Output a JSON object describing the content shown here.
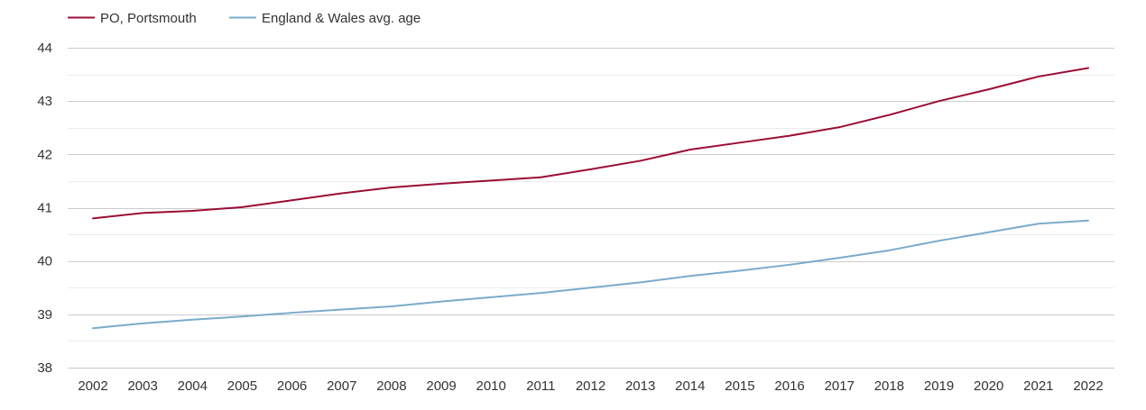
{
  "chart_data": {
    "type": "line",
    "x": [
      "2002",
      "2003",
      "2004",
      "2005",
      "2006",
      "2007",
      "2008",
      "2009",
      "2010",
      "2011",
      "2012",
      "2013",
      "2014",
      "2015",
      "2016",
      "2017",
      "2018",
      "2019",
      "2020",
      "2021",
      "2022"
    ],
    "series": [
      {
        "name": "PO, Portsmouth",
        "color": "#9b0d34",
        "values": [
          40.8,
          40.9,
          40.94,
          41.01,
          41.14,
          41.27,
          41.38,
          41.45,
          41.51,
          41.57,
          41.72,
          41.88,
          42.09,
          42.22,
          42.35,
          42.51,
          42.74,
          43.0,
          43.22,
          43.46,
          43.62
        ]
      },
      {
        "name": "England & Wales avg. age",
        "color": "#7aabcb",
        "values": [
          38.74,
          38.83,
          38.9,
          38.96,
          39.03,
          39.09,
          39.15,
          39.24,
          39.32,
          39.4,
          39.5,
          39.6,
          39.72,
          39.82,
          39.93,
          40.06,
          40.2,
          40.38,
          40.54,
          40.7,
          40.76
        ]
      }
    ],
    "yticks": [
      "38",
      "39",
      "40",
      "41",
      "42",
      "43",
      "44"
    ],
    "ylim": [
      38,
      44
    ],
    "grid": true,
    "legend_position": "top-left",
    "title": "",
    "xlabel": "",
    "ylabel": ""
  }
}
